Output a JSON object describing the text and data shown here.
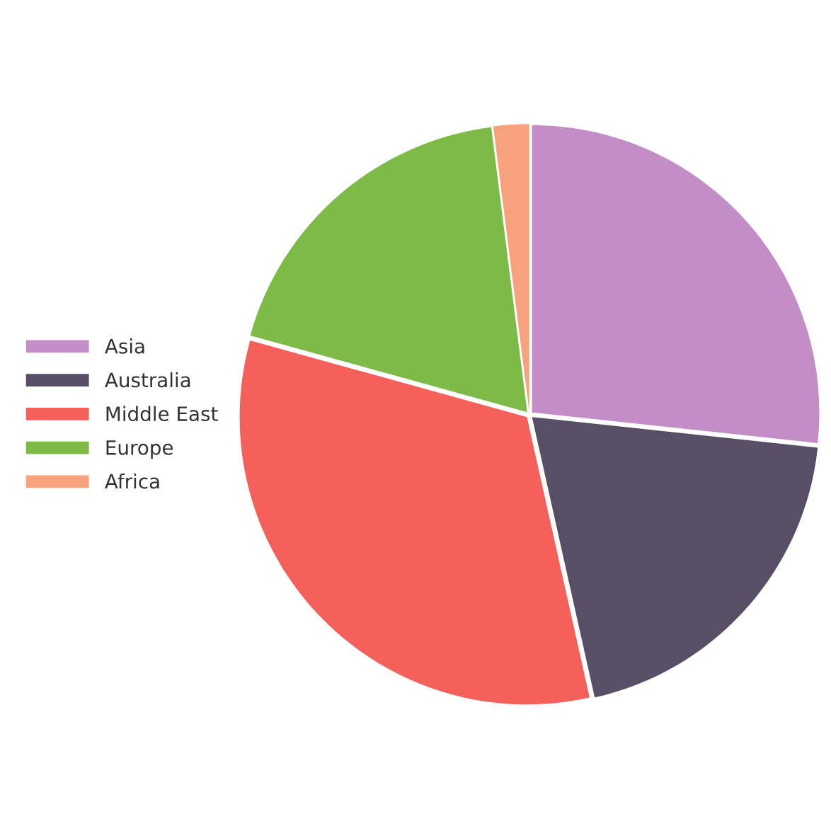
{
  "chart_data": {
    "type": "pie",
    "categories": [
      "Asia",
      "Australia",
      "Middle East",
      "Europe",
      "Africa"
    ],
    "values": [
      26.7,
      19.8,
      32.8,
      18.7,
      2.0
    ],
    "colors": [
      "#c38dc5",
      "#584f66",
      "#f4615c",
      "#7dba47",
      "#f7a27c"
    ],
    "legend": "left"
  }
}
